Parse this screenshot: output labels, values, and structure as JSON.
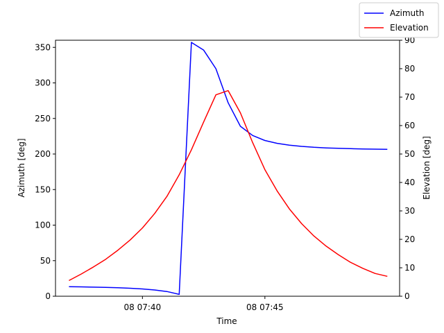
{
  "chart_data": {
    "type": "line",
    "xlabel": "Time",
    "ylabel_left": "Azimuth [deg]",
    "ylabel_right": "Elevation [deg]",
    "x_ticks": [
      "08 07:40",
      "08 07:45"
    ],
    "x_tick_values": [
      40,
      45
    ],
    "xlim": [
      36.45,
      50.5
    ],
    "ylim_left": [
      0,
      360
    ],
    "ylim_right": [
      0,
      90
    ],
    "y_ticks_left": [
      0,
      50,
      100,
      150,
      200,
      250,
      300,
      350
    ],
    "y_ticks_right": [
      0,
      10,
      20,
      30,
      40,
      50,
      60,
      70,
      80,
      90
    ],
    "legend_position": "top-right",
    "colors": {
      "azimuth": "#0000ff",
      "elevation": "#ff0000"
    },
    "series": [
      {
        "name": "Azimuth",
        "axis": "left",
        "x": [
          37.0,
          37.5,
          38.0,
          38.5,
          39.0,
          39.5,
          40.0,
          40.5,
          41.0,
          41.5,
          42.0,
          42.5,
          43.0,
          43.5,
          44.0,
          44.5,
          45.0,
          45.5,
          46.0,
          46.5,
          47.0,
          47.5,
          48.0,
          48.5,
          49.0,
          49.5,
          50.0
        ],
        "values": [
          13.5,
          13.2,
          12.8,
          12.4,
          11.9,
          11.2,
          10.2,
          8.8,
          6.6,
          2.6,
          357,
          346,
          320,
          272,
          239,
          226,
          219,
          215,
          212.5,
          210.7,
          209.5,
          208.6,
          208,
          207.5,
          207.1,
          206.8,
          206.6
        ]
      },
      {
        "name": "Elevation",
        "axis": "right",
        "x": [
          37.0,
          37.5,
          38.0,
          38.5,
          39.0,
          39.5,
          40.0,
          40.5,
          41.0,
          41.5,
          42.0,
          42.5,
          43.0,
          43.5,
          44.0,
          44.5,
          45.0,
          45.5,
          46.0,
          46.5,
          47.0,
          47.5,
          48.0,
          48.5,
          49.0,
          49.5,
          50.0
        ],
        "values": [
          5.5,
          7.8,
          10.3,
          13.0,
          16.2,
          19.8,
          24.0,
          29.1,
          35.1,
          42.7,
          51.5,
          61.3,
          70.8,
          72.3,
          64.5,
          54.0,
          44.5,
          37.0,
          30.7,
          25.5,
          21.2,
          17.6,
          14.6,
          11.9,
          9.8,
          8.0,
          7.0
        ]
      }
    ]
  }
}
